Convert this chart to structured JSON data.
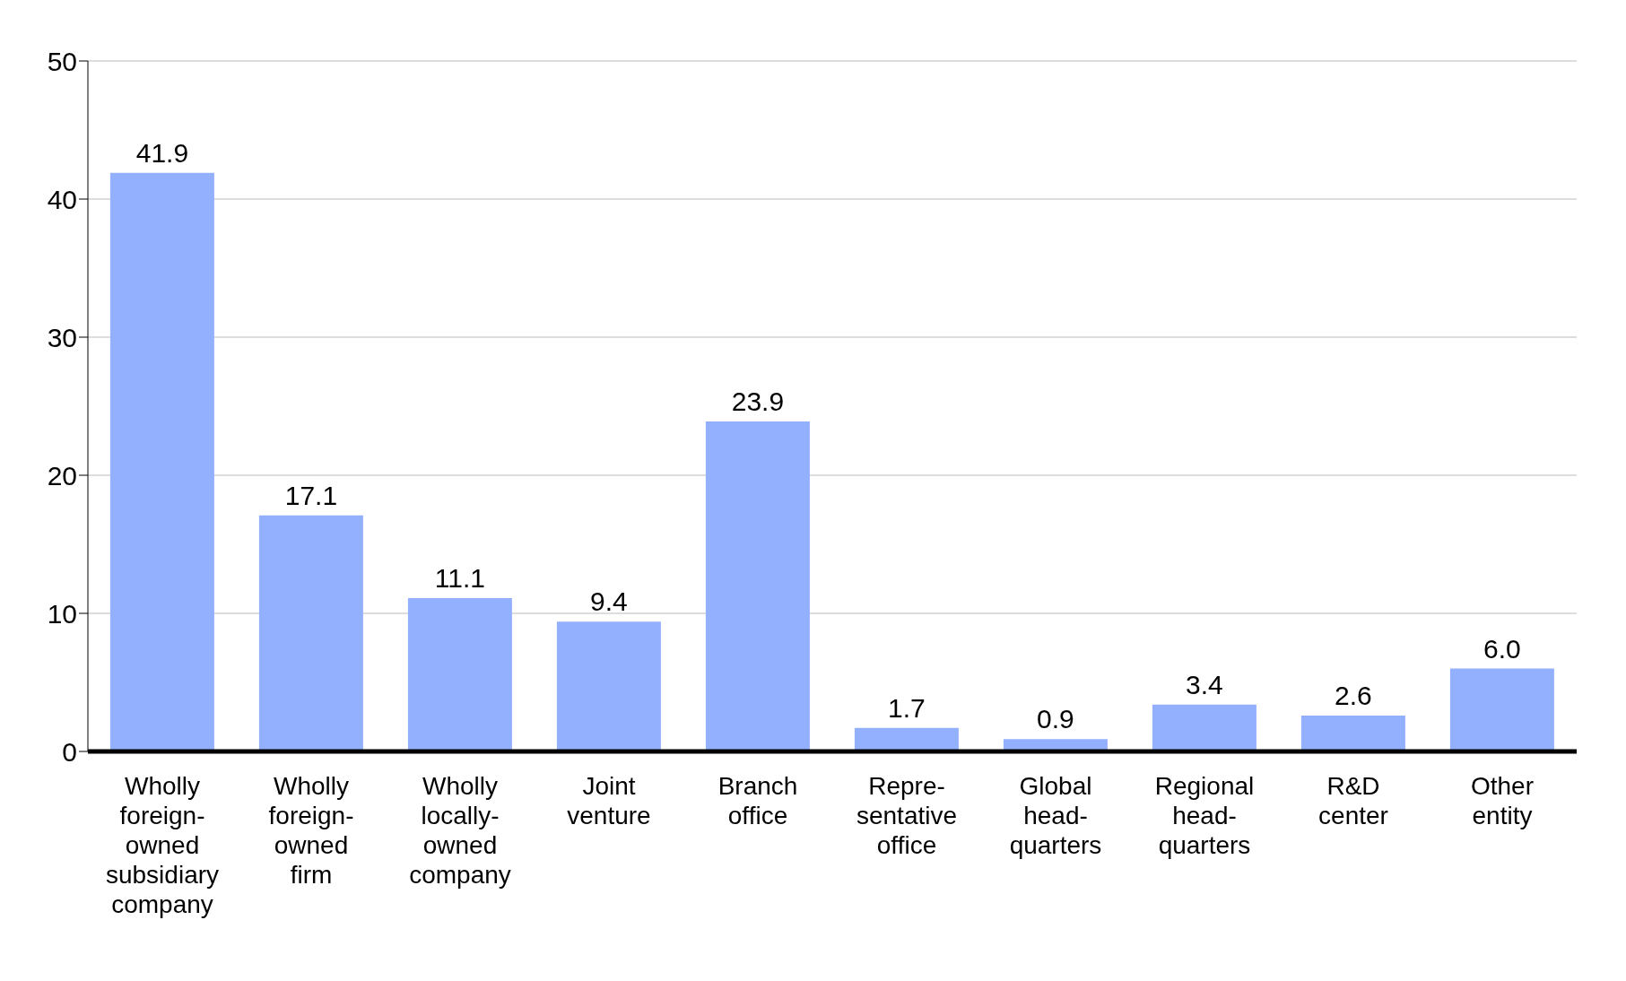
{
  "chart_data": {
    "type": "bar",
    "categories": [
      "Wholly\nforeign-\nowned\nsubsidiary\ncompany",
      "Wholly\nforeign-\nowned\nfirm",
      "Wholly\nlocally-\nowned\ncompany",
      "Joint\nventure",
      "Branch\noffice",
      "Repre-\nsentative\noffice",
      "Global\nhead-\nquarters",
      "Regional\nhead-\nquarters",
      "R&D\ncenter",
      "Other\nentity"
    ],
    "values": [
      41.9,
      17.1,
      11.1,
      9.4,
      23.9,
      1.7,
      0.9,
      3.4,
      2.6,
      6.0
    ],
    "value_labels": [
      "41.9",
      "17.1",
      "11.1",
      "9.4",
      "23.9",
      "1.7",
      "0.9",
      "3.4",
      "2.6",
      "6.0"
    ],
    "color": "#92b0fe",
    "ylim": [
      0,
      50
    ],
    "yticks": [
      0,
      10,
      20,
      30,
      40,
      50
    ],
    "grid": "y",
    "legend": false
  }
}
